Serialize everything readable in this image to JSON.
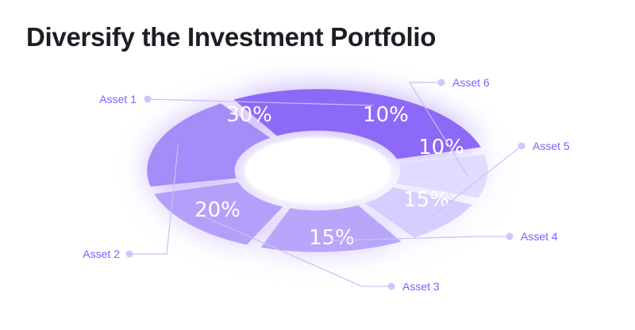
{
  "title": "Diversify the Investment Portfolio",
  "chart_data": {
    "type": "pie",
    "variant": "donut",
    "categories": [
      "Asset 1",
      "Asset 6",
      "Asset 5",
      "Asset 4",
      "Asset 3",
      "Asset 2"
    ],
    "values": [
      30,
      10,
      10,
      15,
      15,
      20
    ],
    "data_labels": [
      "30%",
      "10%",
      "10%",
      "15%",
      "15%",
      "20%"
    ],
    "unit": "%",
    "legend_placement": "callouts"
  },
  "colors": {
    "title": "#1d1d24",
    "label": "#7b61ff",
    "leader": "#c9c0f7",
    "dot": "#cfc6f9",
    "slices": [
      "#8c69f7",
      "#e2daff",
      "#d8cdff",
      "#b8a6fa",
      "#b49ffa",
      "#a48cf9"
    ],
    "slice_text": "#ffffff"
  }
}
